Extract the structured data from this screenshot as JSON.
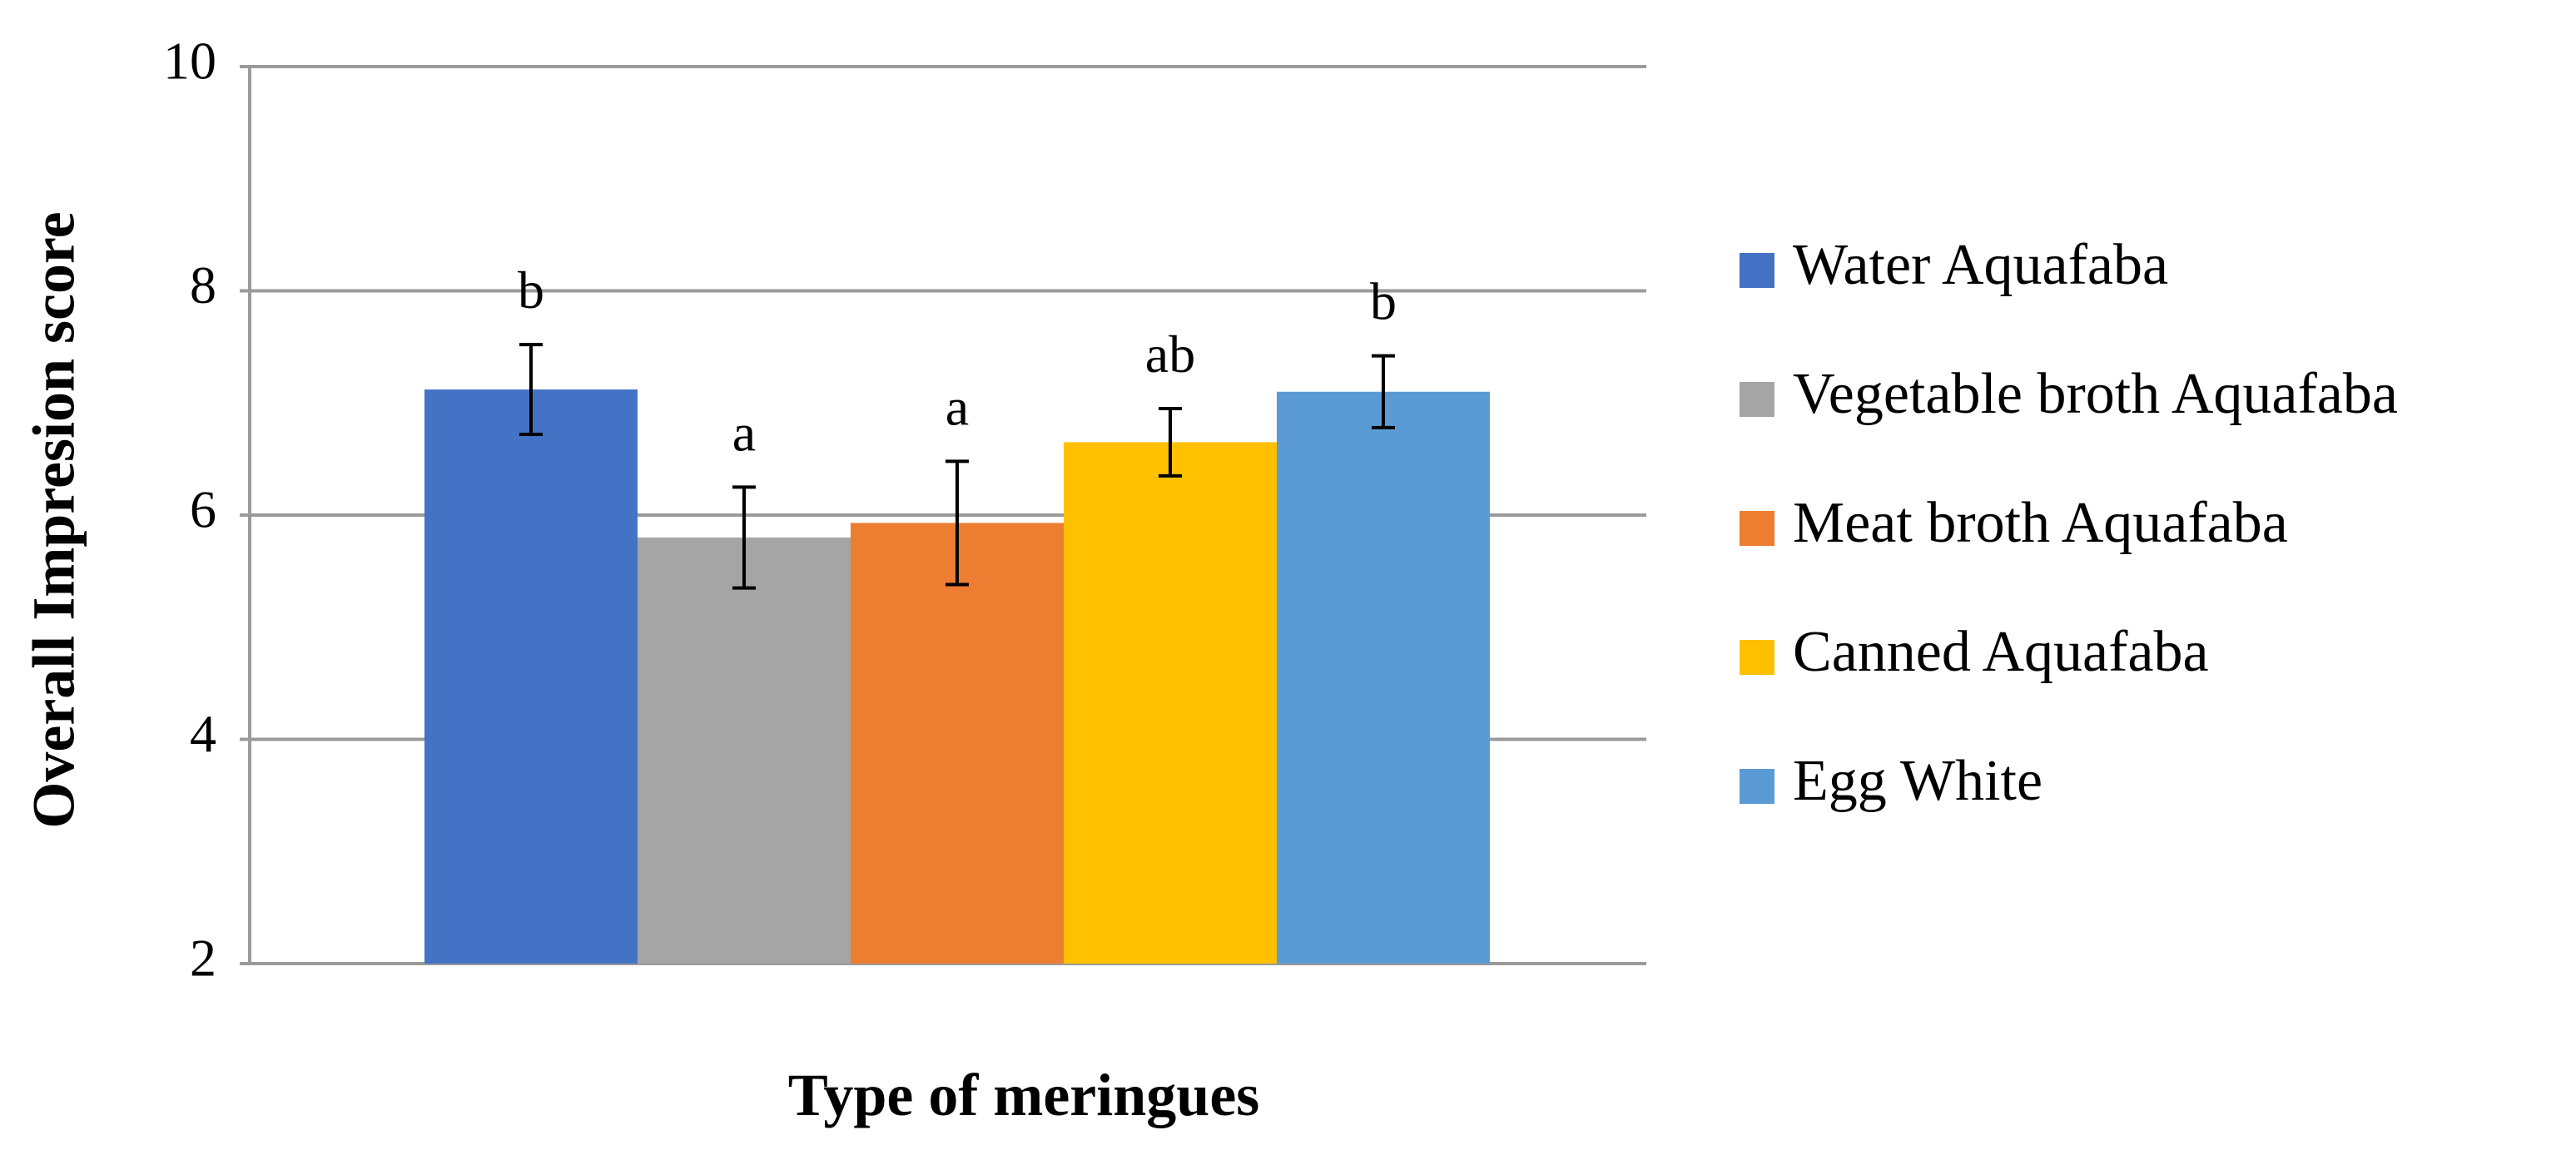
{
  "chart_data": {
    "type": "bar",
    "title": "",
    "xlabel": "Type of meringues",
    "ylabel": "Overall Impresion score",
    "ylim": [
      2,
      10
    ],
    "yticks": [
      2,
      4,
      6,
      8,
      10
    ],
    "grid": true,
    "legend_position": "right",
    "series": [
      {
        "name": "Water Aquafaba",
        "value": 7.12,
        "error": 0.4,
        "significance": "b",
        "color": "#4472C4"
      },
      {
        "name": "Vegetable broth Aquafaba",
        "value": 5.8,
        "error": 0.45,
        "significance": "a",
        "color": "#A5A5A5"
      },
      {
        "name": "Meat broth Aquafaba",
        "value": 5.93,
        "error": 0.55,
        "significance": "a",
        "color": "#ED7D31"
      },
      {
        "name": "Canned Aquafaba",
        "value": 6.65,
        "error": 0.3,
        "significance": "ab",
        "color": "#FFC000"
      },
      {
        "name": "Egg White",
        "value": 7.1,
        "error": 0.32,
        "significance": "b",
        "color": "#5B9BD5"
      }
    ]
  }
}
